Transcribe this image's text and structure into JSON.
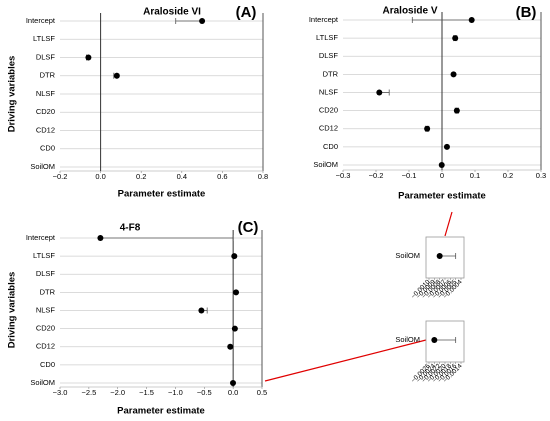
{
  "chart_data": [
    {
      "type": "dot",
      "title": "Araloside VI",
      "panel_label": "(A)",
      "xlabel": "Parameter estimate",
      "ylabel": "Driving variables",
      "color": "#000000",
      "categories": [
        "Intercept",
        "LTLSF",
        "DLSF",
        "DTR",
        "NLSF",
        "CD20",
        "CD12",
        "CD0",
        "SoilOM"
      ],
      "values": [
        0.5,
        null,
        -0.06,
        0.08,
        null,
        null,
        null,
        null,
        null
      ],
      "ci_low": [
        0.37,
        null,
        -0.07,
        0.065,
        null,
        null,
        null,
        null,
        null
      ],
      "ci_high": [
        0.5,
        null,
        -0.06,
        0.08,
        null,
        null,
        null,
        null,
        null
      ],
      "xlim": [
        -0.2,
        0.8
      ],
      "xticks": [
        {
          "value": -0.2,
          "label": "−0.2"
        },
        {
          "value": 0,
          "label": "0.0"
        },
        0.2,
        0.4,
        0.6,
        0.8
      ]
    },
    {
      "type": "dot",
      "title": "Araloside V",
      "panel_label": "(B)",
      "xlabel": "Parameter estimate",
      "color": "#000000",
      "categories": [
        "Intercept",
        "LTLSF",
        "DLSF",
        "DTR",
        "NLSF",
        "CD20",
        "CD12",
        "CD0",
        "SoilOM"
      ],
      "values": [
        0.09,
        0.04,
        null,
        0.035,
        -0.19,
        0.045,
        -0.045,
        0.015,
        -0.0008
      ],
      "ci_low": [
        -0.09,
        0.035,
        null,
        null,
        -0.19,
        0.04,
        -0.05,
        null,
        null
      ],
      "ci_high": [
        0.09,
        0.045,
        null,
        null,
        -0.16,
        0.05,
        -0.04,
        null,
        null
      ],
      "xlim": [
        -0.3,
        0.3
      ],
      "xticks": [
        {
          "value": -0.3,
          "label": "−0.3"
        },
        {
          "value": -0.2,
          "label": "−0.2"
        },
        {
          "value": -0.1,
          "label": "−0.1"
        },
        0,
        0.1,
        0.2,
        0.3
      ]
    },
    {
      "type": "dot",
      "title": "4-F8",
      "panel_label": "(C)",
      "xlabel": "Parameter estimate",
      "ylabel": "Driving variables",
      "color": "#000000",
      "categories": [
        "Intercept",
        "LTLSF",
        "DLSF",
        "DTR",
        "NLSF",
        "CD20",
        "CD12",
        "CD0",
        "SoilOM"
      ],
      "values": [
        -2.3,
        0.02,
        null,
        0.05,
        -0.55,
        0.03,
        -0.05,
        null,
        -0.0024
      ],
      "ci_low": [
        -2.3,
        null,
        null,
        null,
        -0.55,
        null,
        null,
        null,
        null
      ],
      "ci_high": [
        0,
        null,
        null,
        null,
        -0.45,
        null,
        null,
        null,
        null
      ],
      "xlim": [
        -3.0,
        0.5
      ],
      "xticks": [
        {
          "value": -3.0,
          "label": "−3.0"
        },
        {
          "value": -2.5,
          "label": "−2.5"
        },
        {
          "value": -2.0,
          "label": "−2.0"
        },
        {
          "value": -1.5,
          "label": "−1.5"
        },
        {
          "value": -1.0,
          "label": "−1.0"
        },
        {
          "value": -0.5,
          "label": "−0.5"
        },
        {
          "value": 0,
          "label": "0.0"
        },
        0.5
      ]
    },
    {
      "type": "dot",
      "color": "#000000",
      "categories": [
        "SoilOM"
      ],
      "values": [
        -0.0008
      ],
      "ci_low": [
        -0.0008
      ],
      "ci_high": [
        -0.0005
      ],
      "xlim": [
        -0.001,
        -0.0004
      ],
      "xticks": [
        {
          "value": -0.001,
          "label": "−0.0010"
        },
        {
          "value": -0.0009,
          "label": "−0.0009"
        },
        {
          "value": -0.0008,
          "label": "−0.0008"
        },
        {
          "value": -0.0007,
          "label": "−0.0007"
        },
        {
          "value": -0.0006,
          "label": "−0.0006"
        },
        {
          "value": -0.0005,
          "label": "−0.0005"
        },
        {
          "value": -0.0004,
          "label": "−0.0004"
        }
      ]
    },
    {
      "type": "dot",
      "color": "#000000",
      "categories": [
        "SoilOM"
      ],
      "values": [
        -0.0024
      ],
      "ci_low": [
        -0.0024
      ],
      "ci_high": [
        -0.0016
      ],
      "xlim": [
        -0.0026,
        -0.0014
      ],
      "xticks": [
        {
          "value": -0.0026,
          "label": "−0.0026"
        },
        {
          "value": -0.0024,
          "label": "−0.0024"
        },
        {
          "value": -0.0022,
          "label": "−0.0022"
        },
        {
          "value": -0.002,
          "label": "−0.0020"
        },
        {
          "value": -0.0018,
          "label": "−0.0018"
        },
        {
          "value": -0.0016,
          "label": "−0.0016"
        },
        {
          "value": -0.0014,
          "label": "−0.0014"
        }
      ]
    }
  ]
}
